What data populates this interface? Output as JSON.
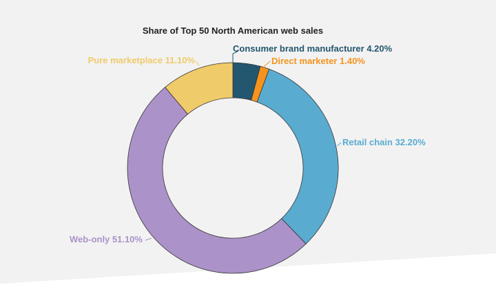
{
  "chart_data": {
    "type": "pie",
    "variant": "donut",
    "title": "Share of Top 50 North American web sales",
    "slices": [
      {
        "name": "Consumer brand manufacturer",
        "value": 4.2,
        "label": "Consumer brand manufacturer 4.20%",
        "color": "#23566f"
      },
      {
        "name": "Direct marketer",
        "value": 1.4,
        "label": "Direct marketer 1.40%",
        "color": "#f5931e"
      },
      {
        "name": "Retail chain",
        "value": 32.2,
        "label": "Retail chain 32.20%",
        "color": "#5aabd0"
      },
      {
        "name": "Web-only",
        "value": 51.1,
        "label": "Web-only 51.10%",
        "color": "#ab92c8"
      },
      {
        "name": "Pure marketplace",
        "value": 11.1,
        "label": "Pure marketplace 11.10%",
        "color": "#f0cb6a"
      }
    ],
    "legend": "none"
  }
}
